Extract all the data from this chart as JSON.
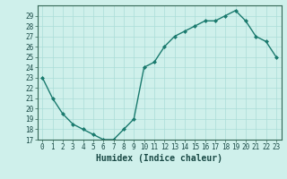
{
  "x": [
    0,
    1,
    2,
    3,
    4,
    5,
    6,
    7,
    8,
    9,
    10,
    11,
    12,
    13,
    14,
    15,
    16,
    17,
    18,
    19,
    20,
    21,
    22,
    23
  ],
  "y": [
    23,
    21,
    19.5,
    18.5,
    18,
    17.5,
    17,
    17,
    18,
    19,
    24,
    24.5,
    26,
    27,
    27.5,
    28,
    28.5,
    28.5,
    29,
    29.5,
    28.5,
    27,
    26.5,
    25
  ],
  "line_color": "#1a7a6e",
  "marker": "D",
  "marker_size": 2.0,
  "xlabel": "Humidex (Indice chaleur)",
  "xlim": [
    -0.5,
    23.5
  ],
  "ylim": [
    17,
    30
  ],
  "yticks": [
    17,
    18,
    19,
    20,
    21,
    22,
    23,
    24,
    25,
    26,
    27,
    28,
    29
  ],
  "xticks": [
    0,
    1,
    2,
    3,
    4,
    5,
    6,
    7,
    8,
    9,
    10,
    11,
    12,
    13,
    14,
    15,
    16,
    17,
    18,
    19,
    20,
    21,
    22,
    23
  ],
  "bg_color": "#cff0eb",
  "grid_color": "#aaddd8",
  "tick_label_fontsize": 5.5,
  "xlabel_fontsize": 7.0,
  "linewidth": 1.0
}
